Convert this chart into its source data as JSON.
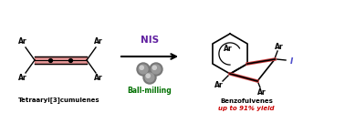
{
  "bg_color": "#ffffff",
  "black": "#000000",
  "red_bond": "#d04040",
  "nis_color": "#6020a0",
  "ball_milling_color": "#007000",
  "yield_color": "#cc0000",
  "label_font": 5.5,
  "small_font": 5.0,
  "left_label": "Tetraaryl[3]cumulenes",
  "right_label": "Benzofulvenes",
  "yield_text": "up to 91% yield",
  "nis_text": "NIS",
  "ball_text": "Ball-milling"
}
